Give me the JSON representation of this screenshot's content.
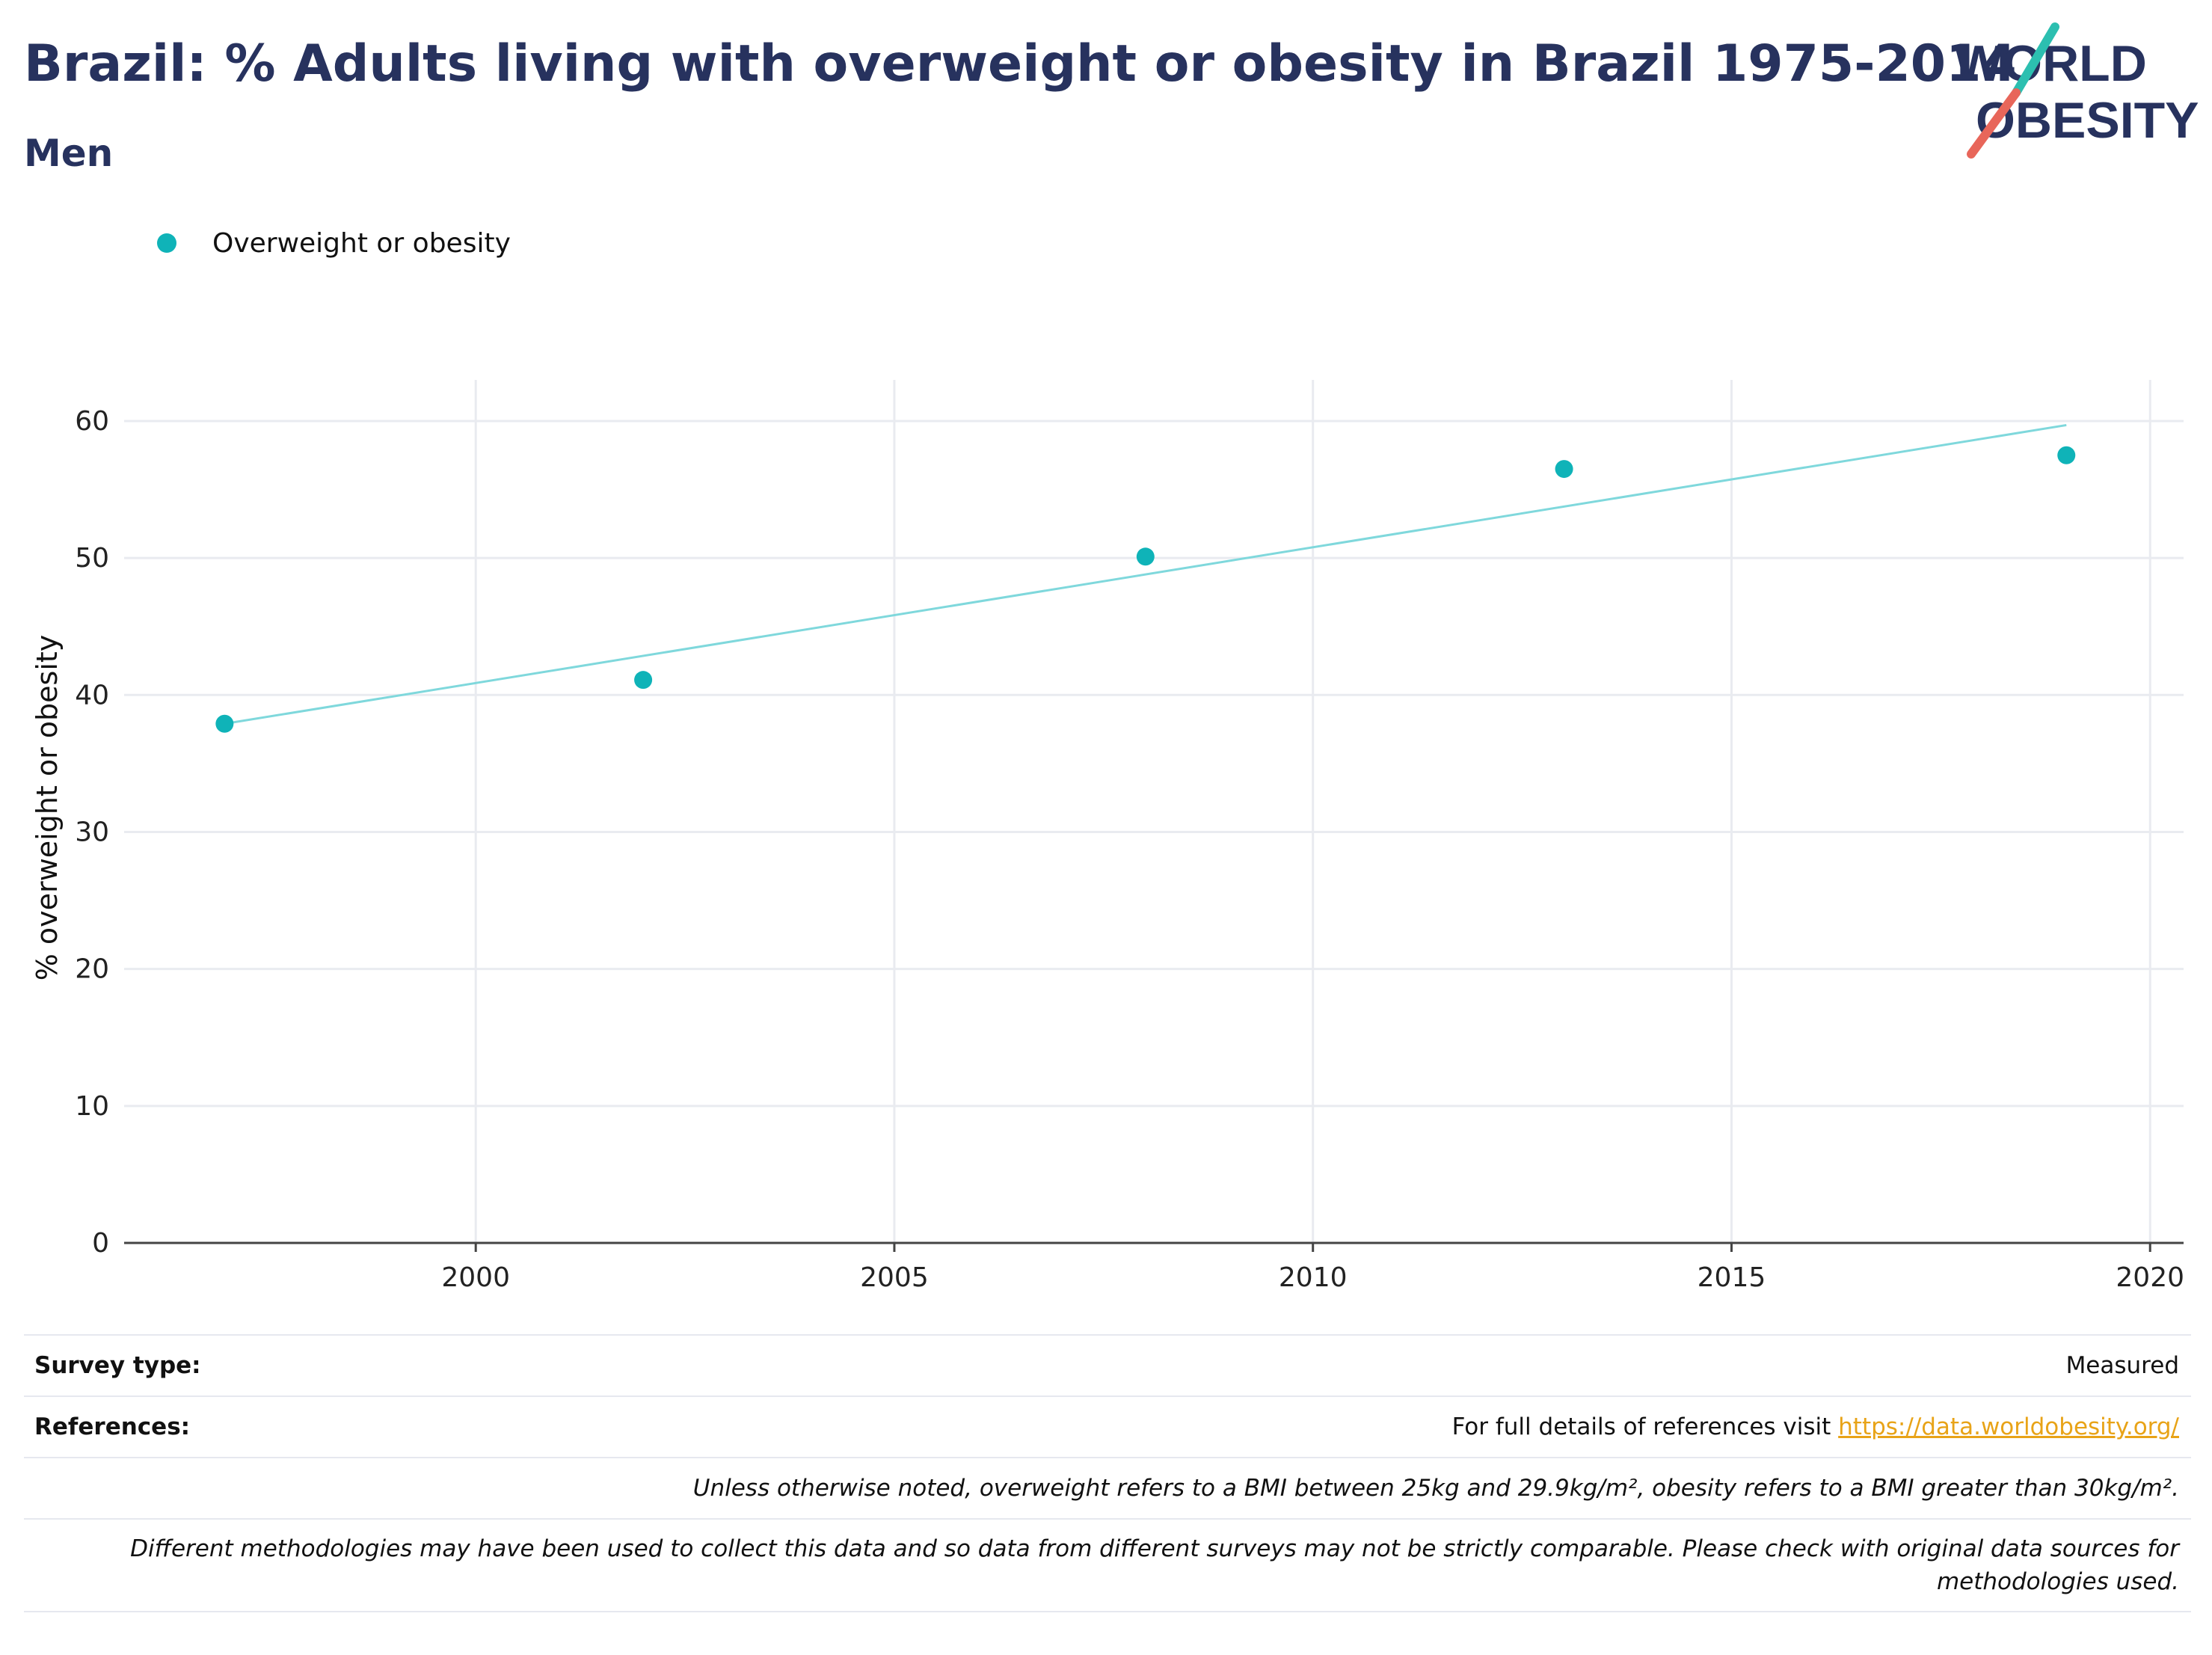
{
  "header": {
    "title": "Brazil: % Adults living with overweight or obesity in Brazil 1975-2014",
    "subtitle": "Men"
  },
  "logo": {
    "line1": "WORLD",
    "line2": "OBESITY",
    "colors": {
      "text": "#27325e",
      "slash_top": "#2cbfb0",
      "slash_bottom": "#e8665a"
    }
  },
  "legend": {
    "items": [
      {
        "label": "Overweight or obesity",
        "color": "#0fb3b8"
      }
    ]
  },
  "chart_data": {
    "type": "scatter",
    "title": "Brazil: % Adults living with overweight or obesity in Brazil 1975-2014",
    "subtitle": "Men",
    "xlabel": "",
    "ylabel": "% overweight or obesity",
    "xlim": [
      1995.8,
      2020.4
    ],
    "ylim": [
      0,
      63
    ],
    "x_ticks": [
      2000,
      2005,
      2010,
      2015,
      2020
    ],
    "y_ticks": [
      0,
      10,
      20,
      30,
      40,
      50,
      60
    ],
    "grid": true,
    "legend_position": "top-left",
    "series": [
      {
        "name": "Overweight or obesity",
        "color": "#0fb3b8",
        "x": [
          1997,
          2002,
          2008,
          2013,
          2019
        ],
        "y": [
          37.9,
          41.1,
          50.1,
          56.5,
          57.5
        ]
      }
    ],
    "trendline": {
      "color": "#7fd8dc",
      "x": [
        1997,
        2019
      ],
      "y": [
        37.9,
        59.7
      ]
    }
  },
  "footer": {
    "survey_type_label": "Survey type:",
    "survey_type_value": "Measured",
    "references_label": "References:",
    "references_text": "For full details of references visit ",
    "references_link": "https://data.worldobesity.org/",
    "note1": "Unless otherwise noted, overweight refers to a BMI between 25kg and 29.9kg/m², obesity refers to a BMI greater than 30kg/m².",
    "note2": "Different methodologies may have been used to collect this data and so data from different surveys may not be strictly comparable. Please check with original data sources for methodologies used."
  }
}
